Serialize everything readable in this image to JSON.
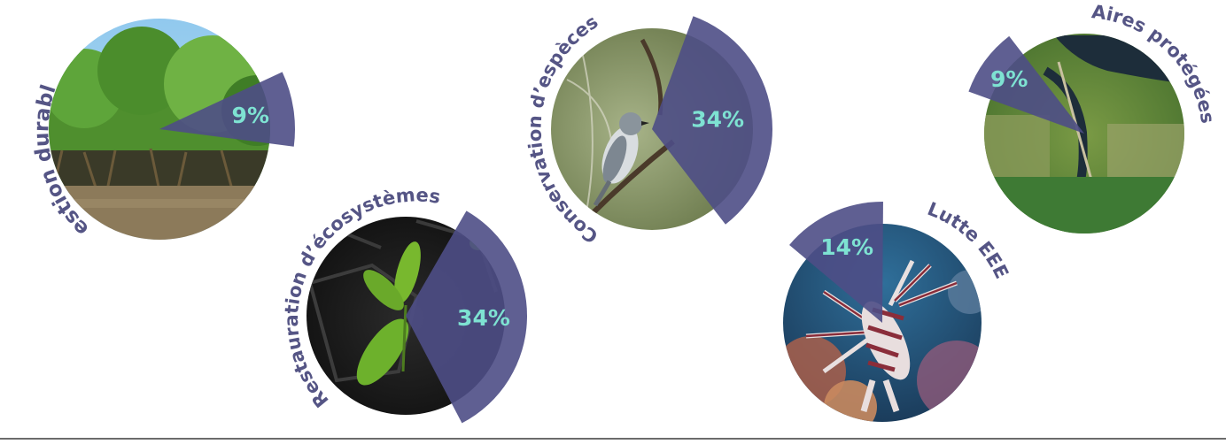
{
  "chart_data": {
    "type": "pie",
    "colors": {
      "wedge": "#4e4e86",
      "label": "#555585",
      "value_text": "#7ee2d2"
    },
    "items": [
      {
        "label": "Gestion durable",
        "value": 9,
        "value_text": "9%",
        "photo": "mangrove"
      },
      {
        "label": "Restauration d’écosystèmes",
        "value": 34,
        "value_text": "34%",
        "photo": "seedling"
      },
      {
        "label": "Conservation d’espèces",
        "value": 34,
        "value_text": "34%",
        "photo": "bird"
      },
      {
        "label": "Lutte EEE",
        "value": 14,
        "value_text": "14%",
        "photo": "lionfish"
      },
      {
        "label": "Aires protégées",
        "value": 9,
        "value_text": "9%",
        "photo": "aerial-wetland"
      }
    ]
  }
}
